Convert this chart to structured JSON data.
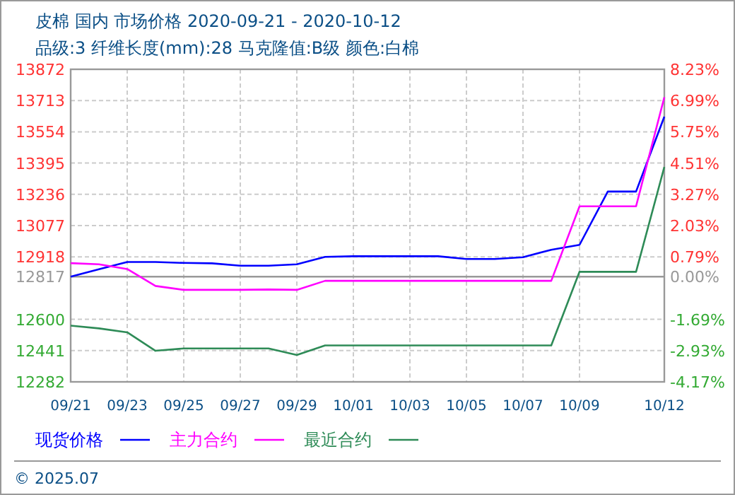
{
  "chart_data": {
    "type": "line",
    "title": "皮棉 国内 市场价格 2020-09-21 - 2020-10-12",
    "subtitle": "品级:3 纤维长度(mm):28 马克隆值:B级 颜色:白棉",
    "x": [
      "2020-09-21",
      "2020-09-22",
      "2020-09-23",
      "2020-09-24",
      "2020-09-25",
      "2020-09-26",
      "2020-09-27",
      "2020-09-28",
      "2020-09-29",
      "2020-09-30",
      "2020-10-01",
      "2020-10-02",
      "2020-10-03",
      "2020-10-04",
      "2020-10-05",
      "2020-10-06",
      "2020-10-07",
      "2020-10-08",
      "2020-10-09",
      "2020-10-10",
      "2020-10-11",
      "2020-10-12"
    ],
    "series": [
      {
        "name": "现货价格",
        "color": "#0000ff",
        "values": [
          12817,
          12855,
          12892,
          12892,
          12887,
          12885,
          12873,
          12873,
          12880,
          12918,
          12921,
          12921,
          12921,
          12921,
          12907,
          12907,
          12916,
          12954,
          12979,
          13250,
          13250,
          13631
        ]
      },
      {
        "name": "主力合约",
        "color": "#ff00ff",
        "values": [
          12886,
          12880,
          12856,
          12770,
          12750,
          12750,
          12750,
          12752,
          12750,
          12796,
          12796,
          12796,
          12796,
          12796,
          12796,
          12796,
          12796,
          12796,
          13175,
          13175,
          13175,
          13730
        ]
      },
      {
        "name": "最近合约",
        "color": "#2e8b57",
        "values": [
          12568,
          12554,
          12534,
          12440,
          12452,
          12452,
          12452,
          12452,
          12419,
          12467,
          12467,
          12467,
          12467,
          12467,
          12467,
          12467,
          12467,
          12467,
          12842,
          12842,
          12842,
          13375
        ]
      }
    ],
    "xlim": [
      "2020-09-21",
      "2020-10-12"
    ],
    "xticks": [
      {
        "value": "2020-09-21",
        "label": "09/21"
      },
      {
        "value": "2020-09-23",
        "label": "09/23"
      },
      {
        "value": "2020-09-25",
        "label": "09/25"
      },
      {
        "value": "2020-09-27",
        "label": "09/27"
      },
      {
        "value": "2020-09-29",
        "label": "09/29"
      },
      {
        "value": "2020-10-01",
        "label": "10/01"
      },
      {
        "value": "2020-10-03",
        "label": "10/03"
      },
      {
        "value": "2020-10-05",
        "label": "10/05"
      },
      {
        "value": "2020-10-07",
        "label": "10/07"
      },
      {
        "value": "2020-10-09",
        "label": "10/09"
      },
      {
        "value": "2020-10-12",
        "label": "10/12"
      }
    ],
    "ylim": [
      12282,
      13872
    ],
    "yticks": [
      13872,
      13713,
      13554,
      13395,
      13236,
      13077,
      12918,
      12817,
      12600,
      12441,
      12282
    ],
    "y2lim": [
      -4.17,
      8.23
    ],
    "y2ticks": [
      {
        "value": 8.23,
        "label": "8.23%"
      },
      {
        "value": 6.99,
        "label": "6.99%"
      },
      {
        "value": 5.75,
        "label": "5.75%"
      },
      {
        "value": 4.51,
        "label": "4.51%"
      },
      {
        "value": 3.27,
        "label": "3.27%"
      },
      {
        "value": 2.03,
        "label": "2.03%"
      },
      {
        "value": 0.79,
        "label": "0.79%"
      },
      {
        "value": 0,
        "label": "0.00%"
      },
      {
        "value": -1.69,
        "label": "-1.69%"
      },
      {
        "value": -2.93,
        "label": "-2.93%"
      },
      {
        "value": -4.17,
        "label": "-4.17%"
      }
    ],
    "ref_lines": [
      {
        "axis": "y",
        "value": 12817,
        "color": "#999999"
      }
    ],
    "grid": true,
    "legend": "bottom",
    "marker": "none",
    "line_style": "solid",
    "annotations": [
      "© 2025.07"
    ]
  }
}
